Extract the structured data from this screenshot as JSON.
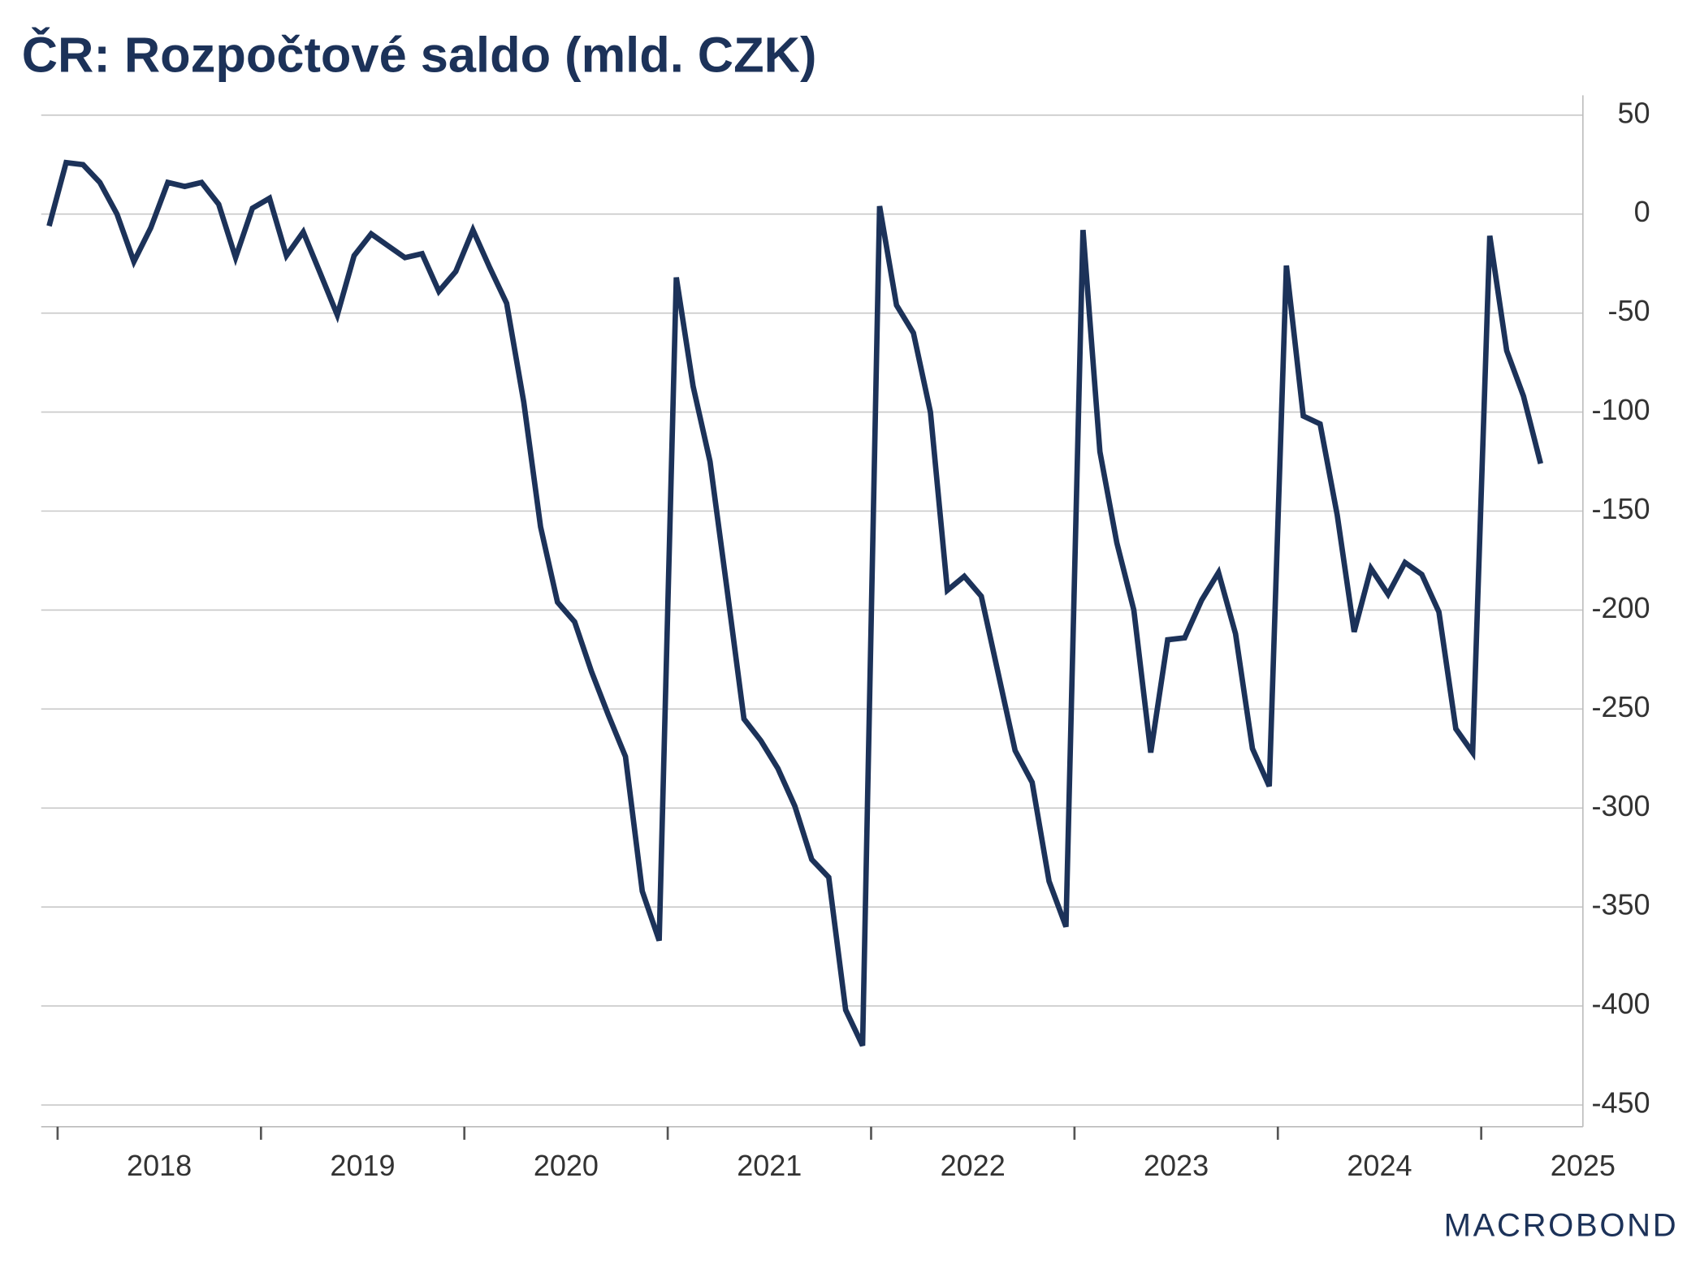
{
  "chart_data": {
    "type": "line",
    "title": "ČR: Rozpočtové saldo (mld. CZK)",
    "source": "MACROBOND",
    "x": [
      2017.958,
      2018.042,
      2018.125,
      2018.208,
      2018.292,
      2018.375,
      2018.458,
      2018.542,
      2018.625,
      2018.708,
      2018.792,
      2018.875,
      2018.958,
      2019.042,
      2019.125,
      2019.208,
      2019.292,
      2019.375,
      2019.458,
      2019.542,
      2019.625,
      2019.708,
      2019.792,
      2019.875,
      2019.958,
      2020.042,
      2020.125,
      2020.208,
      2020.292,
      2020.375,
      2020.458,
      2020.542,
      2020.625,
      2020.708,
      2020.792,
      2020.875,
      2020.958,
      2021.042,
      2021.125,
      2021.208,
      2021.292,
      2021.375,
      2021.458,
      2021.542,
      2021.625,
      2021.708,
      2021.792,
      2021.875,
      2021.958,
      2022.042,
      2022.125,
      2022.208,
      2022.292,
      2022.375,
      2022.458,
      2022.542,
      2022.625,
      2022.708,
      2022.792,
      2022.875,
      2022.958,
      2023.042,
      2023.125,
      2023.208,
      2023.292,
      2023.375,
      2023.458,
      2023.542,
      2023.625,
      2023.708,
      2023.792,
      2023.875,
      2023.958,
      2024.042,
      2024.125,
      2024.208,
      2024.292,
      2024.375,
      2024.458,
      2024.542,
      2024.625,
      2024.708,
      2024.792,
      2024.875,
      2024.958,
      2025.042,
      2025.125,
      2025.208,
      2025.292
    ],
    "series": [
      {
        "name": "Rozpočtové saldo",
        "color": "#1c3259",
        "values": [
          -6,
          26,
          25,
          16,
          0,
          -24,
          -7,
          16,
          14,
          16,
          5,
          -22,
          3,
          8,
          -21,
          -9,
          -30,
          -51,
          -21,
          -10,
          -16,
          -22,
          -20,
          -39,
          -29,
          -8,
          -27,
          -45,
          -95,
          -158,
          -196,
          -206,
          -231,
          -253,
          -274,
          -342,
          -367,
          -32,
          -87,
          -125,
          -190,
          -255,
          -266,
          -280,
          -299,
          -326,
          -335,
          -402,
          -420,
          4,
          -46,
          -60,
          -100,
          -190,
          -183,
          -193,
          -232,
          -271,
          -287,
          -337,
          -360,
          -8,
          -120,
          -166,
          -200,
          -272,
          -215,
          -214,
          -195,
          -181,
          -212,
          -270,
          -289,
          -26,
          -102,
          -106,
          -152,
          -211,
          -179,
          -192,
          -176,
          -182,
          -201,
          -260,
          -272,
          -11,
          -69,
          -92,
          -126
        ]
      }
    ],
    "xlim": [
      2017.93,
      2025.5
    ],
    "xticks": [
      2018,
      2019,
      2020,
      2021,
      2022,
      2023,
      2024,
      2025
    ],
    "ylim": [
      -461,
      60
    ],
    "yticks": [
      50,
      0,
      -50,
      -100,
      -150,
      -200,
      -250,
      -300,
      -350,
      -400,
      -450
    ],
    "grid": true
  }
}
